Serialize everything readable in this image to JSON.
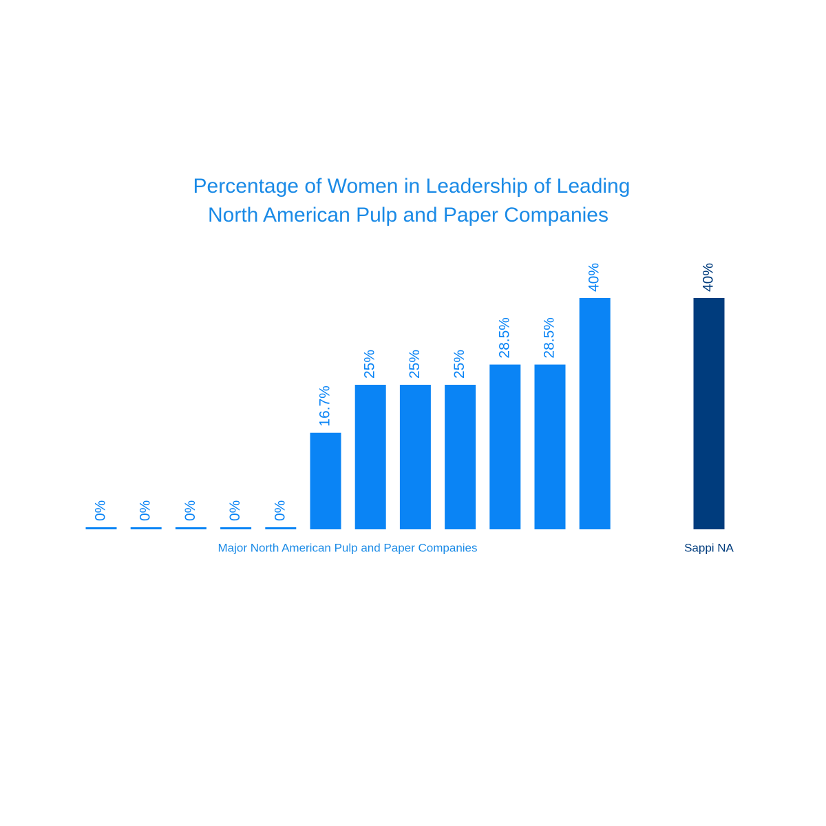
{
  "chart_data": {
    "type": "bar",
    "title": [
      "Percentage of Women in Leadership of Leading",
      "North American Pulp and Paper Companies"
    ],
    "categories": [
      null,
      null,
      null,
      null,
      null,
      null,
      null,
      null,
      null,
      null,
      null,
      null,
      "Sappi NA"
    ],
    "group_label": "Major North American Pulp and Paper Companies",
    "values": [
      0,
      0,
      0,
      0,
      0,
      16.7,
      25,
      25,
      25,
      28.5,
      28.5,
      40,
      40
    ],
    "value_labels": [
      "0%",
      "0%",
      "0%",
      "0%",
      "0%",
      "16.7%",
      "25%",
      "25%",
      "25%",
      "28.5%",
      "28.5%",
      "40%",
      "40%"
    ],
    "colors": [
      "#0a84f5",
      "#0a84f5",
      "#0a84f5",
      "#0a84f5",
      "#0a84f5",
      "#0a84f5",
      "#0a84f5",
      "#0a84f5",
      "#0a84f5",
      "#0a84f5",
      "#0a84f5",
      "#0a84f5",
      "#003c7d"
    ]
  }
}
